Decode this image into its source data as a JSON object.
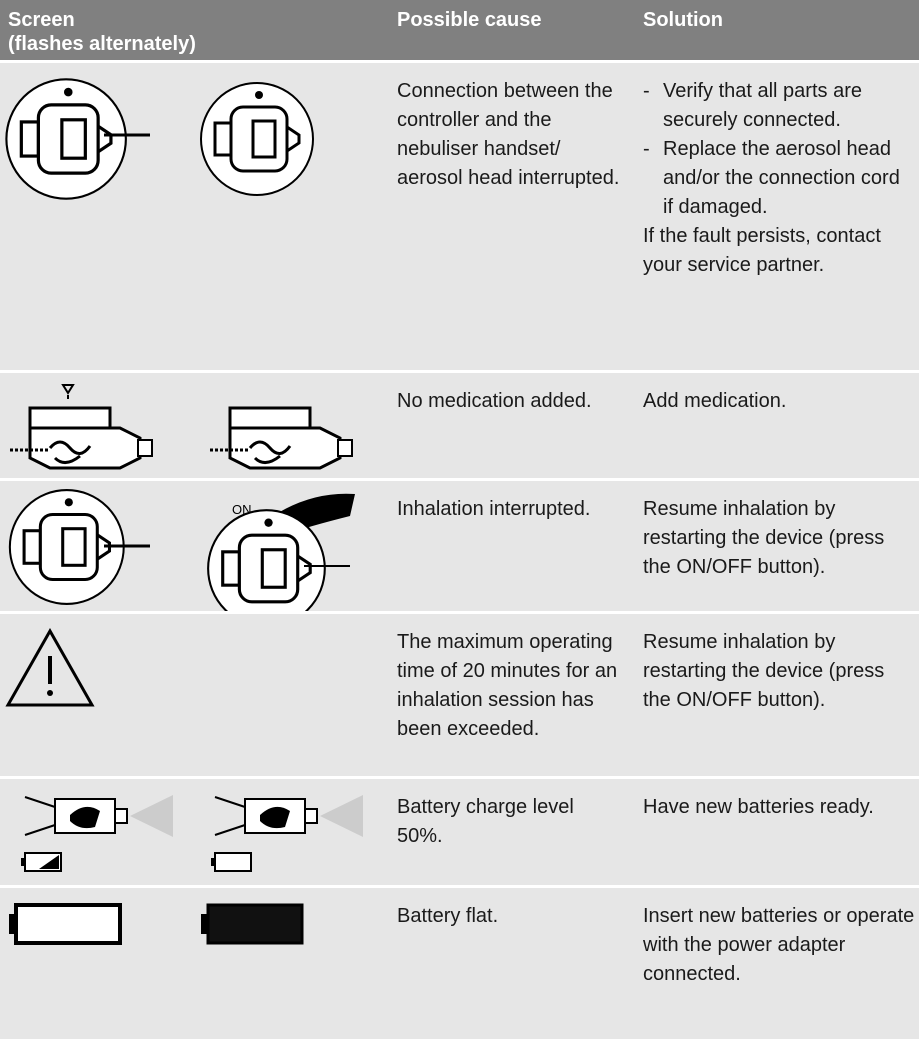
{
  "header": {
    "screen": "Screen",
    "screen_note": "(flashes alternately)",
    "cause": "Possible cause",
    "solution": "Solution"
  },
  "rows": [
    {
      "cause": "Connection between the controller and the nebuliser handset/ aerosol head interrupted.",
      "solution_items": [
        {
          "marker": "-",
          "text": "Verify that all parts are securely connected."
        },
        {
          "marker": "-",
          "text": "Replace the aerosol head and/or the connection cord if damaged."
        }
      ],
      "solution": "If the fault persists, contact your service partner."
    },
    {
      "cause": "No medication added.",
      "solution": "Add medication."
    },
    {
      "cause": "Inhalation interrupted.",
      "solution": "Resume inhalation by restarting the device (press the ON/OFF button).",
      "icon_label": "ON"
    },
    {
      "cause": "The maximum operating time of 20 minutes for an inhalation session has been exceeded.",
      "solution": "Resume inhalation by restarting the device (press the ON/OFF button)."
    },
    {
      "cause": "Battery charge level 50%.",
      "solution": "Have new batteries ready."
    },
    {
      "cause": "Battery flat.",
      "solution": "Insert new batteries or operate with the power adapter connected."
    }
  ]
}
